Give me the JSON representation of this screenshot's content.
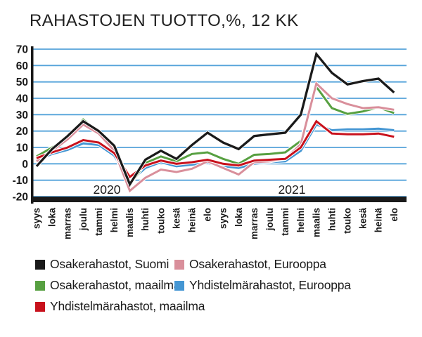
{
  "page": {
    "title": "RAHASTOJEN TUOTTO,%, 12 KK"
  },
  "chart_data": {
    "type": "line",
    "title": "RAHASTOJEN TUOTTO,%, 12 KK",
    "unit": "%",
    "ylim": [
      -20,
      70
    ],
    "y_ticks": [
      70,
      60,
      50,
      40,
      30,
      20,
      10,
      0,
      -10,
      -20
    ],
    "grid": "horizontal light-blue gridlines",
    "grid_color": "#55a3da",
    "axis_color": "#1a1a1a",
    "legend_position": "bottom-left",
    "x_tick_labels": [
      "syys",
      "loka",
      "marras",
      "joulu",
      "tammi",
      "helmi",
      "maalis",
      "huhti",
      "touko",
      "kesä",
      "heinä",
      "elo",
      "syys",
      "loka",
      "marras",
      "joulu",
      "tammi",
      "helmi",
      "maalis",
      "huhti",
      "touko",
      "kesä",
      "heinä",
      "elo"
    ],
    "year_labels": [
      "2020",
      "2021"
    ],
    "series": [
      {
        "name": "Osakerahastot, Suomi",
        "color": "#1a1a1a",
        "values": [
          -1.5,
          9,
          17,
          26,
          20,
          11,
          -12.5,
          2.5,
          8,
          3,
          11.5,
          19,
          13,
          9,
          17,
          18,
          19,
          30,
          67,
          55.5,
          48.5,
          50.5,
          52,
          43.5
        ]
      },
      {
        "name": "Osakerahastot, Eurooppa",
        "color": "#d98f9b",
        "values": [
          1.5,
          8,
          15,
          24,
          18.5,
          8,
          -16.5,
          -8.5,
          -3.5,
          -5,
          -3,
          1.5,
          -2.5,
          -6.5,
          1,
          1.5,
          3,
          12,
          49,
          40,
          36.5,
          34,
          34.5,
          33
        ]
      },
      {
        "name": "Osakerahastot, maailma",
        "color": "#57a041",
        "values": [
          4.5,
          10,
          16,
          27,
          19.5,
          10,
          -13,
          0.5,
          4.5,
          1.5,
          6,
          7,
          3,
          0,
          5.5,
          6,
          7,
          14,
          47,
          34,
          30.5,
          32,
          34.5,
          31
        ]
      },
      {
        "name": "Yhdistelmärahastot, Eurooppa",
        "color": "#4496d3",
        "values": [
          2.5,
          6,
          8.5,
          12.5,
          11.5,
          5,
          -11,
          -2.5,
          1,
          -1.5,
          -0.5,
          0.5,
          -1.5,
          -2.5,
          0,
          1,
          1.5,
          8,
          24,
          20.5,
          21,
          21,
          21.5,
          20.5
        ]
      },
      {
        "name": "Yhdistelmärahastot, maailma",
        "color": "#c8111c",
        "values": [
          3.5,
          7,
          10,
          14.5,
          13,
          6.5,
          -8,
          -1,
          2,
          0,
          1,
          2.5,
          0,
          -1,
          2,
          2.5,
          3,
          10,
          26,
          18.5,
          18,
          18,
          18.5,
          16.5
        ]
      }
    ]
  }
}
